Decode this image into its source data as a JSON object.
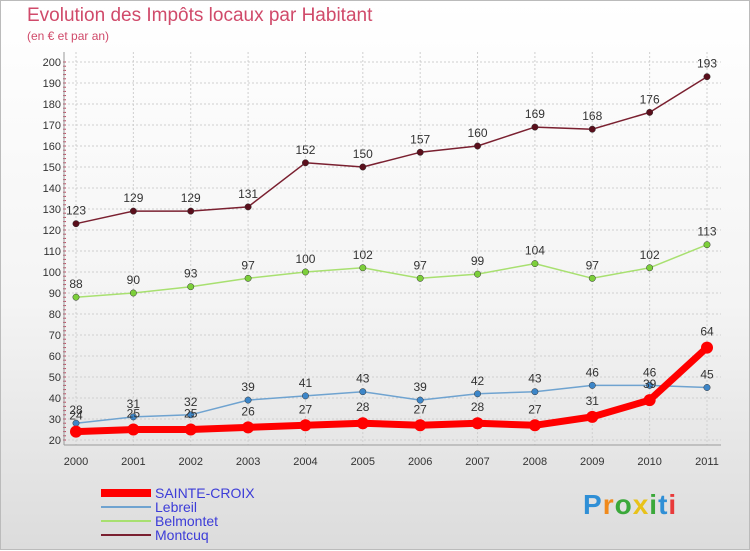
{
  "title": "Evolution des Impôts locaux par Habitant",
  "subtitle": "(en € et par an)",
  "logo": {
    "text": "Proxiti",
    "letter_colors": [
      "#2f8fd6",
      "#f08a1c",
      "#3aa83a",
      "#e8c21a",
      "#3aa83a",
      "#2f8fd6",
      "#e83a3a"
    ]
  },
  "chart_data": {
    "type": "line",
    "x": [
      "2000",
      "2001",
      "2002",
      "2003",
      "2004",
      "2005",
      "2006",
      "2007",
      "2008",
      "2009",
      "2010",
      "2011"
    ],
    "yticks": [
      20,
      30,
      40,
      50,
      60,
      70,
      80,
      90,
      100,
      110,
      120,
      130,
      140,
      150,
      160,
      170,
      180,
      190,
      200
    ],
    "ylim": [
      20,
      200
    ],
    "grid": true,
    "series": [
      {
        "name": "Montcuq",
        "color": "#7a2030",
        "marker": "#5a0f1c",
        "emphasis": false,
        "values": [
          123,
          129,
          129,
          131,
          152,
          150,
          157,
          160,
          169,
          168,
          176,
          193
        ]
      },
      {
        "name": "Belmontet",
        "color": "#a8e070",
        "marker": "#7ccf3a",
        "emphasis": false,
        "values": [
          88,
          90,
          93,
          97,
          100,
          102,
          97,
          99,
          104,
          97,
          102,
          113
        ]
      },
      {
        "name": "Lebreil",
        "color": "#6fa3d0",
        "marker": "#3d86c8",
        "emphasis": false,
        "values": [
          28,
          31,
          32,
          39,
          41,
          43,
          39,
          42,
          43,
          46,
          46,
          45
        ]
      },
      {
        "name": "SAINTE-CROIX",
        "color": "#ff0000",
        "marker": "#ff0000",
        "emphasis": true,
        "values": [
          24,
          25,
          25,
          26,
          27,
          28,
          27,
          28,
          27,
          31,
          39,
          64
        ]
      }
    ],
    "legend_order": [
      "SAINTE-CROIX",
      "Lebreil",
      "Belmontet",
      "Montcuq"
    ],
    "legend_position": "bottom-left"
  }
}
